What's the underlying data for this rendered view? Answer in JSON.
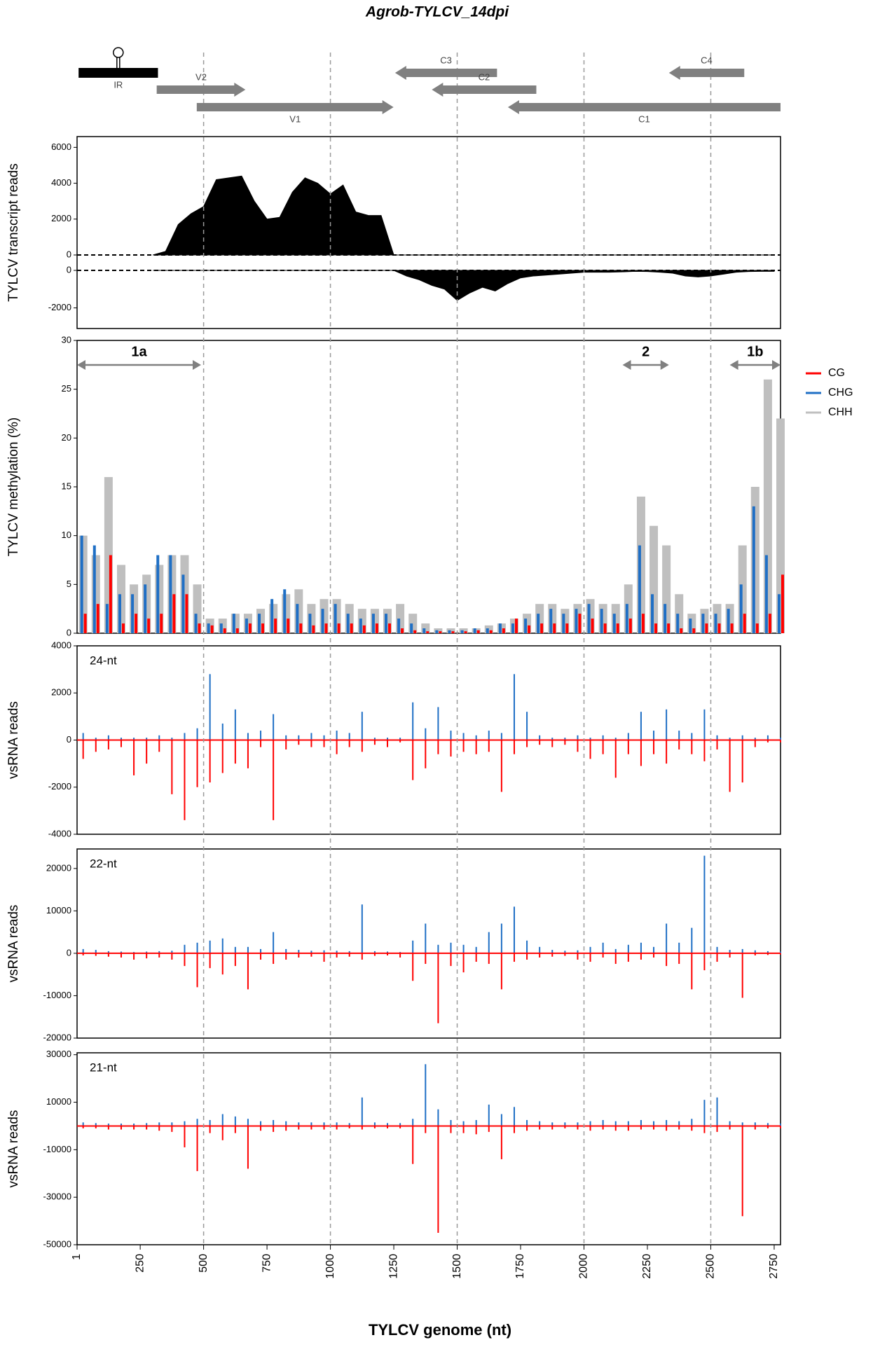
{
  "figure": {
    "title": "Agrob-TYLCV_14dpi",
    "x_label": "TYLCV genome (nt)",
    "xlim": [
      1,
      2775
    ],
    "xticks": [
      1,
      250,
      500,
      750,
      1000,
      1250,
      1500,
      1750,
      2000,
      2250,
      2500,
      2750
    ],
    "vlines": [
      500,
      1000,
      1500,
      2000,
      2500
    ],
    "genome_map": [
      {
        "name": "IR",
        "start": 7,
        "end": 320,
        "row": 0,
        "strand": "none",
        "label_pos": "below"
      },
      {
        "name": "V2",
        "start": 315,
        "end": 665,
        "row": 1,
        "strand": "+",
        "label_pos": "above"
      },
      {
        "name": "V1",
        "start": 473,
        "end": 1249,
        "row": 2,
        "strand": "+",
        "label_pos": "below"
      },
      {
        "name": "C3",
        "start": 1255,
        "end": 1657,
        "row": 0,
        "strand": "-",
        "label_pos": "above"
      },
      {
        "name": "C2",
        "start": 1400,
        "end": 1812,
        "row": 1,
        "strand": "-",
        "label_pos": "above"
      },
      {
        "name": "C1",
        "start": 1700,
        "end": 2775,
        "row": 2,
        "strand": "-",
        "label_pos": "below"
      },
      {
        "name": "C4",
        "start": 2335,
        "end": 2632,
        "row": 0,
        "strand": "-",
        "label_pos": "above"
      }
    ]
  },
  "chart_data": [
    {
      "type": "area",
      "ylabel": "TYLCV transcript reads",
      "x": [
        300,
        350,
        400,
        450,
        500,
        550,
        600,
        650,
        700,
        750,
        800,
        850,
        900,
        950,
        1000,
        1050,
        1100,
        1150,
        1200,
        1250,
        1300,
        1350,
        1400,
        1450,
        1500,
        1550,
        1600,
        1650,
        1700,
        1750,
        1800,
        1850,
        1900,
        1950,
        2000,
        2050,
        2100,
        2150,
        2200,
        2250,
        2300,
        2350,
        2400,
        2450,
        2500,
        2550,
        2600,
        2650,
        2700,
        2750
      ],
      "series": [
        {
          "color": "#000000",
          "ylim": [
            0,
            6600
          ],
          "yticks": [
            0,
            2000,
            4000,
            6000
          ],
          "values": [
            0,
            200,
            1700,
            2300,
            2700,
            4200,
            4300,
            4400,
            3000,
            2000,
            2100,
            3500,
            4300,
            4000,
            3400,
            3900,
            2400,
            2200,
            2200,
            0,
            0,
            0,
            0,
            0,
            0,
            0,
            0,
            0,
            0,
            0,
            0,
            0,
            0,
            0,
            0,
            0,
            0,
            0,
            0,
            0,
            0,
            0,
            0,
            0,
            0,
            0,
            0,
            0,
            0,
            0
          ]
        },
        {
          "color": "#000000",
          "ylim": [
            -3100,
            0
          ],
          "yticks": [
            0,
            -2000
          ],
          "values": [
            0,
            0,
            0,
            0,
            0,
            0,
            0,
            0,
            0,
            0,
            0,
            0,
            0,
            0,
            0,
            0,
            0,
            0,
            0,
            0,
            -300,
            -500,
            -800,
            -1000,
            -1600,
            -1200,
            -900,
            -1100,
            -700,
            -400,
            -300,
            -250,
            -200,
            -150,
            -100,
            -100,
            -100,
            -80,
            -50,
            -60,
            -100,
            -150,
            -300,
            -350,
            -300,
            -200,
            -100,
            -60,
            -50,
            -50
          ]
        }
      ]
    },
    {
      "type": "bar",
      "ylabel": "TYLCV methylation (%)",
      "ylim": [
        0,
        30
      ],
      "yticks": [
        0,
        5,
        10,
        15,
        20,
        25,
        30
      ],
      "legend": "right",
      "regions": [
        {
          "label": "1a",
          "start": 1,
          "end": 490
        },
        {
          "label": "2",
          "start": 2152,
          "end": 2335
        },
        {
          "label": "1b",
          "start": 2575,
          "end": 2775
        }
      ],
      "x": [
        25,
        75,
        125,
        175,
        225,
        275,
        325,
        375,
        425,
        475,
        525,
        575,
        625,
        675,
        725,
        775,
        825,
        875,
        925,
        975,
        1025,
        1075,
        1125,
        1175,
        1225,
        1275,
        1325,
        1375,
        1425,
        1475,
        1525,
        1575,
        1625,
        1675,
        1725,
        1775,
        1825,
        1875,
        1925,
        1975,
        2025,
        2075,
        2125,
        2175,
        2225,
        2275,
        2325,
        2375,
        2425,
        2475,
        2525,
        2575,
        2625,
        2675,
        2725,
        2775
      ],
      "series": [
        {
          "name": "CG",
          "color": "#ff0000",
          "values": [
            2,
            3,
            8,
            1,
            2,
            1.5,
            2,
            4,
            4,
            1,
            0.8,
            0.5,
            0.5,
            1,
            1,
            1.5,
            1.5,
            1,
            0.8,
            1,
            1,
            1,
            0.8,
            1,
            1,
            0.5,
            0.3,
            0.2,
            0.2,
            0.2,
            0.2,
            0.3,
            0.3,
            0.5,
            1.5,
            0.8,
            1,
            1,
            1,
            2,
            1.5,
            1,
            1,
            1.5,
            2,
            1,
            1,
            0.5,
            0.5,
            1,
            1,
            1,
            2,
            1,
            2,
            6
          ]
        },
        {
          "name": "CHG",
          "color": "#1f6fc5",
          "values": [
            10,
            9,
            3,
            4,
            4,
            5,
            8,
            8,
            6,
            2,
            1,
            1,
            2,
            1.5,
            2,
            3.5,
            4.5,
            3,
            2,
            2.5,
            3,
            2,
            1.5,
            2,
            2,
            1.5,
            1,
            0.5,
            0.3,
            0.3,
            0.3,
            0.5,
            0.5,
            1,
            1,
            1.5,
            2,
            2.5,
            2,
            2.5,
            3,
            2.5,
            2,
            3,
            9,
            4,
            3,
            2,
            1.5,
            2,
            2,
            2.5,
            5,
            13,
            8,
            4
          ]
        },
        {
          "name": "CHH",
          "color": "#bfbfbf",
          "values": [
            10,
            8,
            16,
            7,
            5,
            6,
            7,
            8,
            8,
            5,
            1.5,
            1.5,
            2,
            2,
            2.5,
            3,
            4,
            4.5,
            3,
            3.5,
            3.5,
            3,
            2.5,
            2.5,
            2.5,
            3,
            2,
            1,
            0.5,
            0.5,
            0.5,
            0.5,
            0.8,
            1,
            1.5,
            2,
            3,
            3,
            2.5,
            3,
            3.5,
            3,
            3,
            5,
            14,
            11,
            9,
            4,
            2,
            2.5,
            3,
            3,
            9,
            15,
            26,
            22
          ]
        }
      ]
    },
    {
      "type": "spike",
      "label": "24-nt",
      "ylabel": "vsRNA reads",
      "ylim": [
        -4000,
        4000
      ],
      "yticks": [
        -4000,
        -2000,
        0,
        2000,
        4000
      ],
      "x": [
        25,
        75,
        125,
        175,
        225,
        275,
        325,
        375,
        425,
        475,
        525,
        575,
        625,
        675,
        725,
        775,
        825,
        875,
        925,
        975,
        1025,
        1075,
        1125,
        1175,
        1225,
        1275,
        1325,
        1375,
        1425,
        1475,
        1525,
        1575,
        1625,
        1675,
        1725,
        1775,
        1825,
        1875,
        1925,
        1975,
        2025,
        2075,
        2125,
        2175,
        2225,
        2275,
        2325,
        2375,
        2425,
        2475,
        2525,
        2575,
        2625,
        2675,
        2725,
        2775
      ],
      "series": [
        {
          "color": "#1f6fc5",
          "values": [
            300,
            100,
            200,
            100,
            100,
            100,
            200,
            100,
            300,
            500,
            2800,
            700,
            1300,
            300,
            400,
            1100,
            200,
            200,
            300,
            200,
            400,
            300,
            1200,
            100,
            100,
            100,
            1600,
            500,
            1400,
            400,
            300,
            200,
            400,
            300,
            2800,
            1200,
            200,
            100,
            100,
            200,
            100,
            200,
            100,
            300,
            1200,
            400,
            1300,
            400,
            300,
            1300,
            200,
            100,
            200,
            100,
            200,
            100
          ]
        },
        {
          "color": "#ff0000",
          "values": [
            -800,
            -500,
            -400,
            -300,
            -1500,
            -1000,
            -500,
            -2300,
            -3400,
            -2000,
            -1800,
            -1400,
            -1000,
            -1200,
            -300,
            -3400,
            -400,
            -200,
            -300,
            -300,
            -600,
            -300,
            -500,
            -200,
            -300,
            -100,
            -1700,
            -1200,
            -600,
            -700,
            -500,
            -600,
            -500,
            -2200,
            -600,
            -300,
            -200,
            -300,
            -200,
            -500,
            -800,
            -600,
            -1600,
            -600,
            -1100,
            -600,
            -1000,
            -400,
            -600,
            -900,
            -400,
            -2200,
            -1800,
            -300,
            -100,
            -100
          ]
        }
      ]
    },
    {
      "type": "spike",
      "label": "22-nt",
      "ylabel": "vsRNA reads",
      "ylim": [
        -20000,
        24600
      ],
      "yticks": [
        -20000,
        -10000,
        0,
        10000,
        20000
      ],
      "x": [
        25,
        75,
        125,
        175,
        225,
        275,
        325,
        375,
        425,
        475,
        525,
        575,
        625,
        675,
        725,
        775,
        825,
        875,
        925,
        975,
        1025,
        1075,
        1125,
        1175,
        1225,
        1275,
        1325,
        1375,
        1425,
        1475,
        1525,
        1575,
        1625,
        1675,
        1725,
        1775,
        1825,
        1875,
        1925,
        1975,
        2025,
        2075,
        2125,
        2175,
        2225,
        2275,
        2325,
        2375,
        2425,
        2475,
        2525,
        2575,
        2625,
        2675,
        2725,
        2775
      ],
      "series": [
        {
          "color": "#1f6fc5",
          "values": [
            1000,
            800,
            500,
            400,
            300,
            400,
            500,
            600,
            2000,
            2500,
            3000,
            3500,
            1500,
            1500,
            1000,
            5000,
            1000,
            800,
            600,
            700,
            600,
            500,
            11500,
            500,
            400,
            300,
            3000,
            7000,
            2000,
            2500,
            2000,
            1500,
            5000,
            7000,
            11000,
            3000,
            1500,
            800,
            600,
            700,
            1500,
            2500,
            1000,
            2000,
            2500,
            1500,
            7000,
            2500,
            6000,
            23000,
            1500,
            800,
            1000,
            700,
            500,
            400
          ]
        },
        {
          "color": "#ff0000",
          "values": [
            -500,
            -600,
            -800,
            -1000,
            -1500,
            -1200,
            -1000,
            -1500,
            -3000,
            -8000,
            -3500,
            -5000,
            -3000,
            -8500,
            -1500,
            -2500,
            -1500,
            -1000,
            -800,
            -2000,
            -1000,
            -800,
            -1500,
            -600,
            -500,
            -1000,
            -6500,
            -2500,
            -16500,
            -3000,
            -4500,
            -2000,
            -2500,
            -8500,
            -2000,
            -1500,
            -1000,
            -800,
            -600,
            -1500,
            -2000,
            -1000,
            -2500,
            -2000,
            -1500,
            -1000,
            -3000,
            -2500,
            -8500,
            -4000,
            -2000,
            -1000,
            -10500,
            -500,
            -400,
            -300
          ]
        }
      ]
    },
    {
      "type": "spike",
      "label": "21-nt",
      "ylabel": "vsRNA reads",
      "ylim": [
        -50000,
        30800
      ],
      "yticks": [
        -50000,
        -30000,
        -10000,
        10000,
        30000
      ],
      "x": [
        25,
        75,
        125,
        175,
        225,
        275,
        325,
        375,
        425,
        475,
        525,
        575,
        625,
        675,
        725,
        775,
        825,
        875,
        925,
        975,
        1025,
        1075,
        1125,
        1175,
        1225,
        1275,
        1325,
        1375,
        1425,
        1475,
        1525,
        1575,
        1625,
        1675,
        1725,
        1775,
        1825,
        1875,
        1925,
        1975,
        2025,
        2075,
        2125,
        2175,
        2225,
        2275,
        2325,
        2375,
        2425,
        2475,
        2525,
        2575,
        2625,
        2675,
        2725,
        2775
      ],
      "series": [
        {
          "color": "#1f6fc5",
          "values": [
            1500,
            1200,
            1000,
            1000,
            1000,
            1200,
            1500,
            1500,
            2000,
            3000,
            2500,
            5000,
            4000,
            3000,
            2000,
            2500,
            2000,
            1500,
            1500,
            1500,
            1500,
            1200,
            12000,
            1500,
            1200,
            1200,
            3000,
            26000,
            7000,
            2500,
            2000,
            2500,
            9000,
            5000,
            8000,
            2500,
            2000,
            1500,
            1500,
            1500,
            2000,
            2500,
            2000,
            2000,
            2500,
            2000,
            2500,
            2000,
            3000,
            11000,
            12000,
            2000,
            1500,
            1500,
            1200,
            1000
          ]
        },
        {
          "color": "#ff0000",
          "values": [
            -1000,
            -1000,
            -1500,
            -1500,
            -1500,
            -1500,
            -2000,
            -2500,
            -9000,
            -19000,
            -3000,
            -6000,
            -3000,
            -18000,
            -2000,
            -2500,
            -2000,
            -1500,
            -1500,
            -1500,
            -1500,
            -1000,
            -1500,
            -1000,
            -1000,
            -1000,
            -16000,
            -3000,
            -45000,
            -3000,
            -3000,
            -3500,
            -2500,
            -14000,
            -3000,
            -2000,
            -1500,
            -1500,
            -1000,
            -1500,
            -2000,
            -1500,
            -2000,
            -2000,
            -1500,
            -1500,
            -2000,
            -1500,
            -2000,
            -3000,
            -2500,
            -1500,
            -38000,
            -1500,
            -1000,
            -1000
          ]
        }
      ]
    }
  ]
}
